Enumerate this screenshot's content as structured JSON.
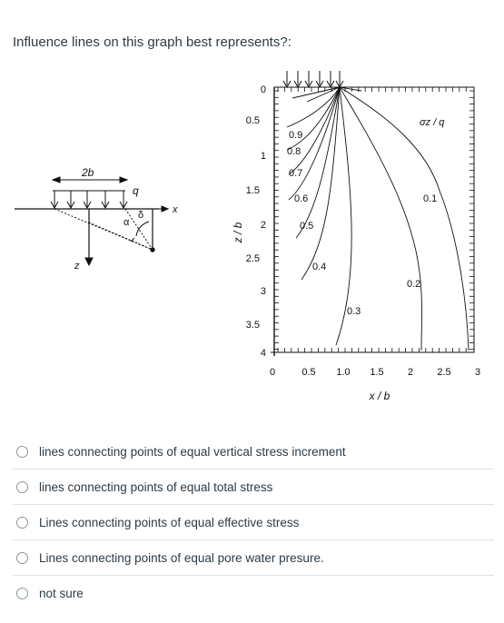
{
  "question": {
    "text": "Influence lines on this graph best represents?:"
  },
  "figure": {
    "z_axis_label": "z / b",
    "x_axis_label": "x / b",
    "stress_ratio_label": "σz / q",
    "z_ticks": [
      "0",
      "0.5",
      "1",
      "1.5",
      "2",
      "2.5",
      "3",
      "3.5",
      "4"
    ],
    "x_ticks": [
      "0",
      "0.5",
      "1.0",
      "1.5",
      "2",
      "2.5",
      "3"
    ],
    "contour_labels": [
      "0.9",
      "0.8",
      "0.7",
      "0.6",
      "0.5",
      "0.4",
      "0.3",
      "0.2",
      "0.1"
    ],
    "sketch": {
      "width_label": "2b",
      "load_label": "q",
      "x_label": "x",
      "z_label": "z",
      "alpha_label": "α",
      "delta_label": "δ"
    }
  },
  "options": [
    {
      "label": "lines connecting points of equal vertical stress increment"
    },
    {
      "label": "lines connecting points of equal total stress"
    },
    {
      "label": "Lines connecting points of equal effective stress"
    },
    {
      "label": "Lines connecting points of equal pore water presure."
    },
    {
      "label": "not sure"
    }
  ]
}
